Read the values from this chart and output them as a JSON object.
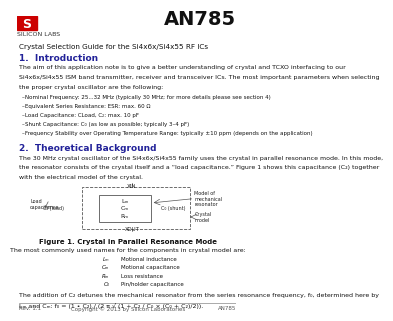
{
  "title": "AN785",
  "subtitle": "Crystal Selection Guide for the Si4x6x/Si4x55 RF ICs",
  "bg_color": "#ffffff",
  "logo_color": "#cc0000",
  "section1_title": "1.  Introduction",
  "section1_body1": "The aim of this application note is to give a better understanding of crystal and TCXO interfacing to our",
  "section1_body2": "Si4x6x/Si4x55 ISM band transmitter, receiver and transceiver ICs. The most important parameters when selecting",
  "section1_body3": "the proper crystal oscillator are the following:",
  "bullets": [
    "Nominal Frequency: 25...32 MHz (typically 30 MHz; for more details please see section 4)",
    "Equivalent Series Resistance: ESR: max. 60 Ω",
    "Load Capacitance: CLoad, C₂: max. 10 pF",
    "Shunt Capacitance: C₀ (as low as possible; typically 3–4 pF)",
    "Frequency Stability over Operating Temperature Range: typically ±10 ppm (depends on the application)"
  ],
  "section2_title": "2.  Theoretical Background",
  "section2_body1": "The 30 MHz crystal oscillator of the Si4x6x/Si4x55 family uses the crystal in parallel resonance mode. In this mode,",
  "section2_body2": "the resonator consists of the crystal itself and a “load capacitance.” Figure 1 shows this capacitance (C₂) together",
  "section2_body3": "with the electrical model of the crystal.",
  "fig_caption": "Figure 1. Crystal in Parallel Resonance Mode",
  "component_labels": [
    [
      "Lₘ",
      "Motional inductance"
    ],
    [
      "Cₘ",
      "Motional capacitance"
    ],
    [
      "Rₘ",
      "Loss resistance"
    ],
    [
      "C₀",
      "Pin/holder capacitance"
    ]
  ],
  "section2_footer1": "The addition of C₂ detunes the mechanical resonator from the series resonance frequency, f₀, determined here by",
  "section2_footer2": "Lₘ and Cₘ: f₀ = (1 • C₂) / (2 π √ (1 + C₂ / C₀ × (C₀ + C₂)/2)).",
  "footer_left": "Rev. 1.1",
  "footer_center": "Copyright © 2013 by Silicon Laboratories",
  "footer_right": "AN785"
}
